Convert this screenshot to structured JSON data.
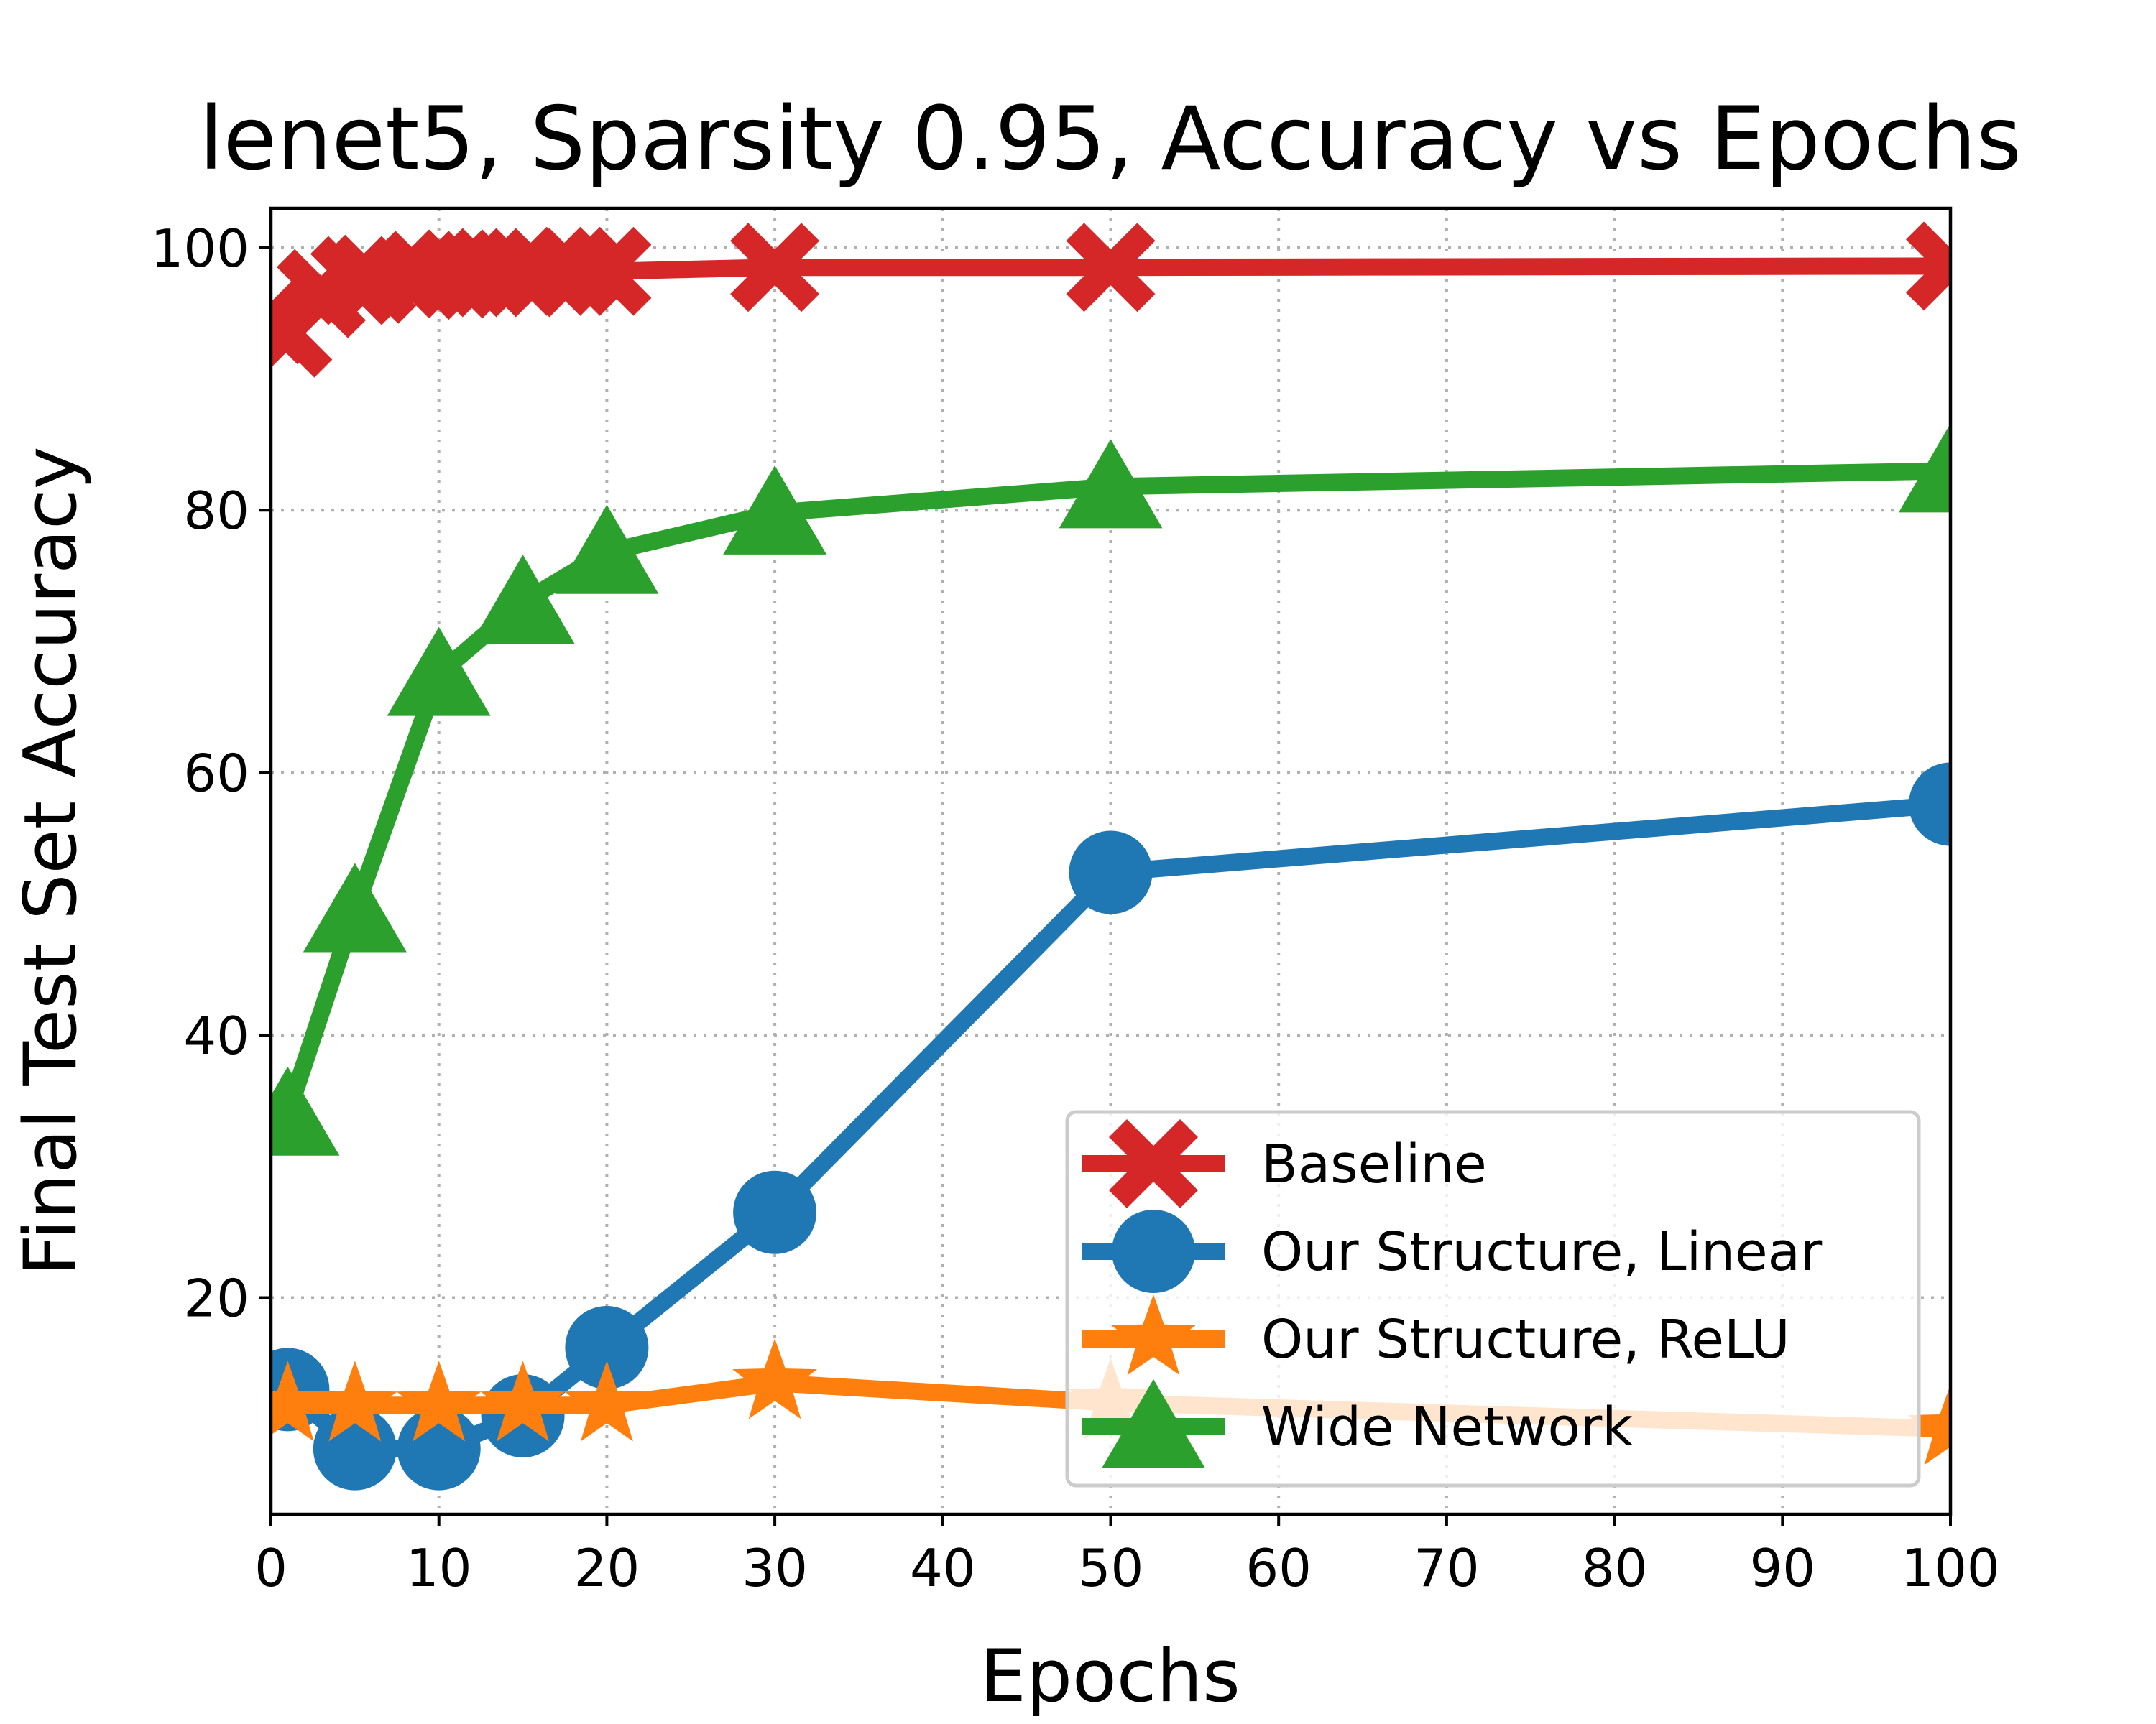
{
  "chart_data": {
    "type": "line",
    "title": "lenet5, Sparsity 0.95, Accuracy vs Epochs",
    "xlabel": "Epochs",
    "ylabel": "Final Test Set Accuracy",
    "xlim": [
      0,
      100
    ],
    "ylim": [
      3.5,
      103
    ],
    "xticks": [
      0,
      10,
      20,
      30,
      40,
      50,
      60,
      70,
      80,
      90,
      100
    ],
    "yticks": [
      20,
      40,
      60,
      80,
      100
    ],
    "grid": true,
    "legend_position": "lower-right",
    "series": [
      {
        "name": "Baseline",
        "color": "#d62728",
        "marker": "X",
        "x": [
          0,
          1,
          3,
          5,
          6,
          9,
          11,
          13,
          15,
          18,
          20,
          30,
          50,
          100
        ],
        "y": [
          94.5,
          93.5,
          96.5,
          97.5,
          97.6,
          97.9,
          98.0,
          98.1,
          98.1,
          98.2,
          98.2,
          98.5,
          98.5,
          98.6
        ]
      },
      {
        "name": "Our Structure, Linear",
        "color": "#1f77b4",
        "marker": "circle",
        "x": [
          1,
          5,
          10,
          15,
          20,
          30,
          50,
          100
        ],
        "y": [
          13.0,
          8.5,
          8.5,
          11.0,
          16.2,
          26.5,
          52.4,
          57.6
        ]
      },
      {
        "name": "Our Structure, ReLU",
        "color": "#ff7f0e",
        "marker": "star",
        "x": [
          1,
          5,
          10,
          15,
          20,
          30,
          50,
          100
        ],
        "y": [
          11.8,
          11.8,
          11.8,
          11.8,
          11.8,
          13.5,
          12.0,
          10.0
        ]
      },
      {
        "name": "Wide Network",
        "color": "#2ca02c",
        "marker": "triangle",
        "x": [
          1,
          5,
          10,
          15,
          20,
          30,
          50,
          100
        ],
        "y": [
          34.0,
          49.5,
          67.5,
          73.0,
          76.8,
          79.8,
          81.8,
          83.0
        ]
      }
    ]
  }
}
